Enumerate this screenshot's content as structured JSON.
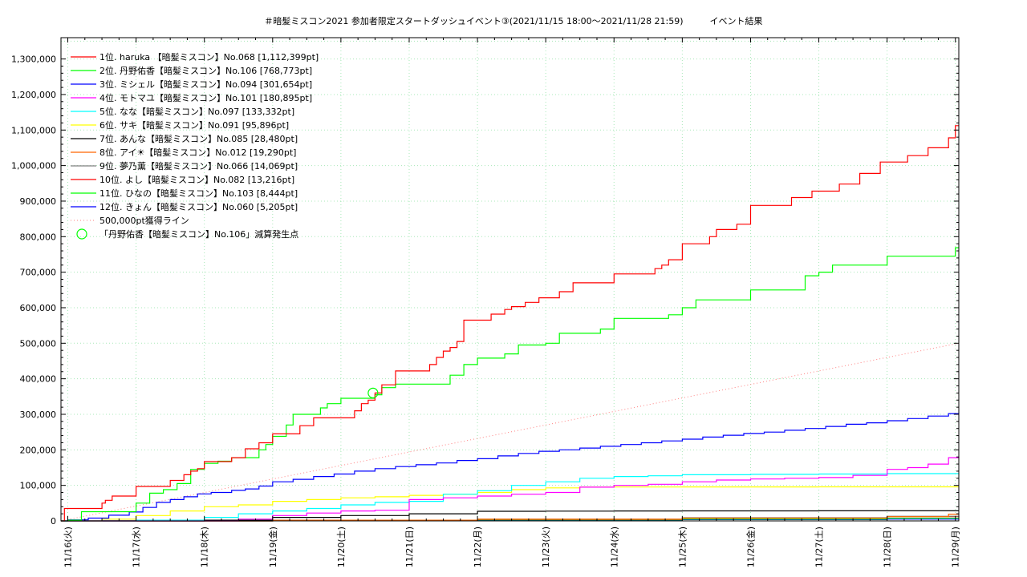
{
  "chart_data": {
    "type": "line",
    "title": "＃暗髪ミスコン2021 参加者限定スタートダッシュイベント③(2021/11/15 18:00～2021/11/28 21:59)　　　イベント結果",
    "xlabel": "",
    "ylabel": "",
    "x_ticks": [
      "11/16(火)",
      "11/17(水)",
      "11/18(木)",
      "11/19(金)",
      "11/20(土)",
      "11/21(日)",
      "11/22(月)",
      "11/23(火)",
      "11/24(水)",
      "11/25(木)",
      "11/26(金)",
      "11/27(土)",
      "11/28(日)",
      "11/29(月)"
    ],
    "xlim": [
      -0.1,
      13.05
    ],
    "ylim": [
      0,
      1360000
    ],
    "y_ticks": [
      0,
      100000,
      200000,
      300000,
      400000,
      500000,
      600000,
      700000,
      800000,
      900000,
      1000000,
      1100000,
      1200000,
      1300000
    ],
    "y_tick_labels": [
      "0",
      "100,000",
      "200,000",
      "300,000",
      "400,000",
      "500,000",
      "600,000",
      "700,000",
      "800,000",
      "900,000",
      "1,000,000",
      "1,100,000",
      "1,200,000",
      "1,300,000"
    ],
    "grid": true,
    "legend_position": "top-left",
    "series": [
      {
        "name": "1位. haruka 【暗髪ミスコン】No.068 [1,112,399pt]",
        "color": "#ff0000",
        "x": [
          -0.1,
          -0.05,
          0.0,
          0.5,
          0.55,
          0.65,
          0.9,
          1.0,
          1.4,
          1.5,
          1.7,
          1.8,
          1.9,
          2.0,
          2.3,
          2.4,
          2.6,
          2.8,
          3.0,
          3.2,
          3.4,
          3.6,
          3.8,
          4.0,
          4.2,
          4.3,
          4.4,
          4.5,
          4.6,
          4.8,
          4.9,
          5.0,
          5.3,
          5.4,
          5.5,
          5.6,
          5.7,
          5.8,
          6.0,
          6.2,
          6.4,
          6.5,
          6.7,
          6.9,
          7.0,
          7.2,
          7.4,
          7.6,
          7.8,
          8.0,
          8.3,
          8.6,
          8.7,
          8.8,
          9.0,
          9.2,
          9.4,
          9.5,
          9.6,
          9.8,
          10.0,
          10.3,
          10.6,
          10.9,
          11.0,
          11.3,
          11.5,
          11.6,
          11.9,
          12.1,
          12.3,
          12.5,
          12.6,
          12.9,
          13.0,
          13.05
        ],
        "y": [
          0,
          35000,
          35000,
          50000,
          58000,
          70000,
          70000,
          97000,
          97000,
          114000,
          130000,
          140000,
          147000,
          167000,
          167000,
          178000,
          203000,
          220000,
          245000,
          245000,
          268000,
          290000,
          290000,
          290000,
          310000,
          330000,
          340000,
          360000,
          383000,
          422000,
          422000,
          422000,
          440000,
          460000,
          478000,
          488000,
          505000,
          565000,
          565000,
          582000,
          595000,
          603000,
          615000,
          628000,
          628000,
          645000,
          670000,
          670000,
          670000,
          695000,
          695000,
          710000,
          720000,
          735000,
          780000,
          780000,
          800000,
          820000,
          820000,
          835000,
          888000,
          888000,
          910000,
          928000,
          928000,
          948000,
          948000,
          978000,
          1010000,
          1010000,
          1028000,
          1028000,
          1050000,
          1078000,
          1112399,
          1112399
        ]
      },
      {
        "name": "2位. 丹野佑香【暗髪ミスコン】No.106 [768,773pt]",
        "color": "#00ff00",
        "x": [
          -0.1,
          0.0,
          0.2,
          0.5,
          0.8,
          1.0,
          1.2,
          1.4,
          1.6,
          1.8,
          2.0,
          2.2,
          2.4,
          2.6,
          2.8,
          2.9,
          3.0,
          3.2,
          3.3,
          3.5,
          3.7,
          3.8,
          4.0,
          4.2,
          4.4,
          4.5,
          4.6,
          4.8,
          5.0,
          5.3,
          5.5,
          5.6,
          5.8,
          6.0,
          6.3,
          6.4,
          6.6,
          6.8,
          7.0,
          7.2,
          7.4,
          7.6,
          7.8,
          8.0,
          8.2,
          8.4,
          8.6,
          8.8,
          9.0,
          9.2,
          9.4,
          9.6,
          9.8,
          10.0,
          10.2,
          10.4,
          10.6,
          10.8,
          11.0,
          11.2,
          11.4,
          11.6,
          11.8,
          12.0,
          12.3,
          12.6,
          12.9,
          13.0,
          13.05
        ],
        "y": [
          0,
          2000,
          26000,
          26000,
          26000,
          50000,
          78000,
          88000,
          105000,
          145000,
          162000,
          168000,
          178000,
          178000,
          200000,
          215000,
          238000,
          270000,
          300000,
          300000,
          318000,
          330000,
          345000,
          345000,
          345000,
          355000,
          375000,
          385000,
          385000,
          385000,
          385000,
          410000,
          440000,
          458000,
          458000,
          470000,
          495000,
          495000,
          500000,
          528000,
          528000,
          528000,
          540000,
          570000,
          570000,
          570000,
          570000,
          580000,
          600000,
          622000,
          622000,
          622000,
          622000,
          650000,
          650000,
          650000,
          650000,
          690000,
          700000,
          720000,
          720000,
          720000,
          720000,
          745000,
          745000,
          745000,
          745000,
          768773,
          768773
        ]
      },
      {
        "name": "3位. ミシェル【暗髪ミスコン】No.094 [301,654pt]",
        "color": "#0000ff",
        "x": [
          -0.1,
          0.0,
          0.3,
          0.6,
          0.9,
          1.1,
          1.3,
          1.5,
          1.7,
          1.9,
          2.1,
          2.4,
          2.6,
          2.8,
          3.0,
          3.3,
          3.6,
          3.9,
          4.2,
          4.5,
          4.8,
          5.1,
          5.4,
          5.7,
          6.0,
          6.3,
          6.6,
          6.9,
          7.2,
          7.5,
          7.8,
          8.1,
          8.4,
          8.7,
          9.0,
          9.3,
          9.6,
          9.9,
          10.2,
          10.5,
          10.8,
          11.1,
          11.4,
          11.7,
          12.0,
          12.3,
          12.6,
          12.9,
          13.05
        ],
        "y": [
          0,
          3000,
          8000,
          16000,
          25000,
          38000,
          52000,
          60000,
          68000,
          76000,
          80000,
          86000,
          90000,
          98000,
          110000,
          117000,
          125000,
          132000,
          140000,
          147000,
          153000,
          158000,
          163000,
          170000,
          175000,
          183000,
          190000,
          196000,
          200000,
          205000,
          210000,
          215000,
          220000,
          225000,
          230000,
          236000,
          241000,
          246000,
          250000,
          255000,
          260000,
          266000,
          272000,
          276000,
          282000,
          288000,
          295000,
          302000,
          301654
        ]
      },
      {
        "name": "4位. モトマユ【暗髪ミスコン】No.101 [180,895pt]",
        "color": "#ff00ff",
        "x": [
          -0.1,
          2.0,
          2.5,
          3.0,
          3.5,
          4.0,
          4.5,
          5.0,
          5.5,
          6.0,
          6.5,
          7.0,
          7.5,
          8.0,
          8.5,
          9.0,
          9.5,
          10.0,
          10.5,
          11.0,
          11.5,
          12.0,
          12.3,
          12.6,
          12.9,
          13.05
        ],
        "y": [
          0,
          0,
          5000,
          15000,
          22000,
          28000,
          30000,
          60000,
          65000,
          70000,
          75000,
          80000,
          95000,
          100000,
          103000,
          110000,
          115000,
          118000,
          120000,
          122000,
          128000,
          145000,
          150000,
          160000,
          178000,
          180895
        ]
      },
      {
        "name": "5位. なな【暗髪ミスコン】No.097 [133,332pt]",
        "color": "#00ffff",
        "x": [
          -0.1,
          1.0,
          2.0,
          2.5,
          3.0,
          3.5,
          4.0,
          4.5,
          5.0,
          5.5,
          6.0,
          6.5,
          7.0,
          7.5,
          8.0,
          8.5,
          9.0,
          10.0,
          11.0,
          12.0,
          13.05
        ],
        "y": [
          0,
          2000,
          10000,
          20000,
          28000,
          35000,
          45000,
          52000,
          55000,
          75000,
          85000,
          100000,
          110000,
          120000,
          125000,
          127000,
          130000,
          131000,
          132000,
          133000,
          133332
        ]
      },
      {
        "name": "6位. サキ【暗髪ミスコン】No.091 [95,896pt]",
        "color": "#ffff00",
        "x": [
          -0.1,
          0.5,
          1.0,
          1.5,
          2.0,
          2.5,
          3.0,
          3.5,
          4.0,
          4.5,
          5.0,
          5.5,
          6.0,
          6.5,
          7.0,
          7.5,
          8.0,
          9.0,
          10.0,
          11.0,
          12.0,
          13.05
        ],
        "y": [
          0,
          5000,
          15000,
          28000,
          40000,
          45000,
          55000,
          60000,
          65000,
          68000,
          72000,
          75000,
          80000,
          88000,
          93000,
          95000,
          95500,
          95600,
          95700,
          95800,
          95850,
          95896
        ]
      },
      {
        "name": "7位. あんな【暗髪ミスコン】No.085 [28,480pt]",
        "color": "#000000",
        "x": [
          -0.1,
          2.0,
          3.0,
          4.0,
          5.0,
          6.0,
          7.0,
          8.0,
          9.0,
          10.0,
          11.0,
          12.0,
          13.05
        ],
        "y": [
          0,
          2000,
          10000,
          15000,
          20000,
          27000,
          27500,
          28000,
          28200,
          28300,
          28400,
          28450,
          28480
        ]
      },
      {
        "name": "8位. アイ☀【暗髪ミスコン】No.012 [19,290pt]",
        "color": "#ff6600",
        "x": [
          -0.1,
          3.0,
          6.0,
          9.0,
          12.0,
          12.9,
          13.05
        ],
        "y": [
          0,
          2000,
          5000,
          8000,
          12000,
          19000,
          19290
        ]
      },
      {
        "name": "9位. 夢乃薫【暗髪ミスコン】No.066 [14,069pt]",
        "color": "#808080",
        "x": [
          -0.1,
          3.0,
          6.0,
          9.0,
          12.0,
          13.05
        ],
        "y": [
          0,
          2000,
          5000,
          9000,
          13000,
          14069
        ]
      },
      {
        "name": "10位. よし【暗髪ミスコン】No.082 [13,216pt]",
        "color": "#ff0000",
        "x": [
          -0.1,
          3.0,
          6.0,
          9.0,
          12.0,
          13.05
        ],
        "y": [
          0,
          2000,
          4000,
          8000,
          12000,
          13216
        ]
      },
      {
        "name": "11位. ひなの【暗髪ミスコン】No.103 [8,444pt]",
        "color": "#00ff00",
        "x": [
          -0.1,
          3.0,
          6.0,
          9.0,
          12.0,
          13.05
        ],
        "y": [
          0,
          1000,
          3000,
          5000,
          7500,
          8444
        ]
      },
      {
        "name": "12位. きょん【暗髪ミスコン】No.060 [5,205pt]",
        "color": "#0000ff",
        "x": [
          -0.1,
          3.0,
          6.0,
          9.0,
          12.0,
          13.05
        ],
        "y": [
          0,
          500,
          2000,
          3500,
          5000,
          5205
        ]
      }
    ],
    "reference_line": {
      "name": "500,000pt獲得ライン",
      "color": "#ff8080",
      "x": [
        -0.1,
        13.05
      ],
      "y": [
        0,
        500000
      ]
    },
    "marker": {
      "name": "「丹野佑香【暗髪ミスコン】No.106」減算発生点",
      "color": "#00ff00",
      "x": 4.47,
      "y": 360000
    }
  }
}
